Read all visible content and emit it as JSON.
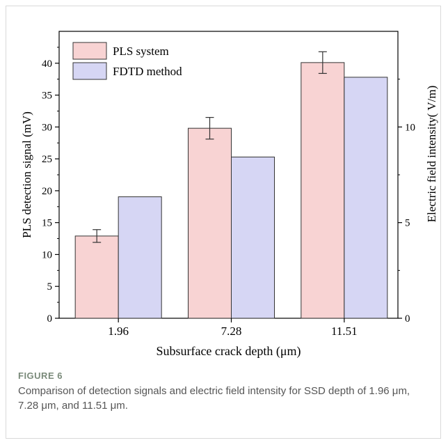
{
  "chart_data": {
    "type": "bar",
    "categories": [
      "1.96",
      "7.28",
      "11.51"
    ],
    "xlabel": "Subsurface crack depth (μm)",
    "ylabel": "PLS detection signal (mV)",
    "y2label": "Electric field intensity( V/m)",
    "ylim": [
      0,
      45
    ],
    "yticks": [
      0,
      5,
      10,
      15,
      20,
      25,
      30,
      35,
      40
    ],
    "y2lim": [
      0,
      15
    ],
    "y2ticks": [
      0,
      5,
      10
    ],
    "legend_position": "top-left",
    "series": [
      {
        "name": "PLS system",
        "axis": "left",
        "values": [
          12.9,
          29.8,
          40.1
        ],
        "errors": [
          1.0,
          1.7,
          1.7
        ],
        "color": "#f8d3d3"
      },
      {
        "name": "FDTD method",
        "axis": "right",
        "values": [
          6.35,
          8.43,
          12.6
        ],
        "color": "#d6d6f4"
      }
    ]
  },
  "caption": {
    "label": "FIGURE 6",
    "text": "Comparison of detection signals and electric field intensity for SSD depth of 1.96 μm, 7.28 μm, and 11.51 μm."
  }
}
